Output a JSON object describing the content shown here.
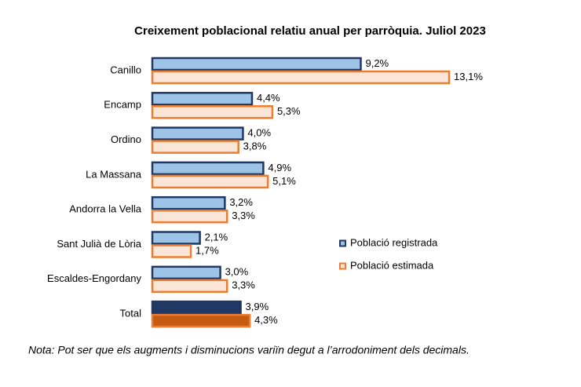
{
  "chart_data": {
    "type": "bar",
    "orientation": "horizontal",
    "title": "Creixement poblacional relatiu anual per parròquia. Juliol 2023",
    "note": "Nota: Pot ser que els augments i disminucions variïn degut a l’arrodoniment dels decimals.",
    "categories": [
      "Canillo",
      "Encamp",
      "Ordino",
      "La Massana",
      "Andorra la Vella",
      "Sant Julià de Lòria",
      "Escaldes-Engordany",
      "Total"
    ],
    "xlim": [
      0,
      14
    ],
    "legend": "right",
    "series": [
      {
        "name": "Població registrada",
        "color": "#9dc3e6",
        "border": "#1f3864",
        "colors": [
          "#9dc3e6",
          "#9dc3e6",
          "#9dc3e6",
          "#9dc3e6",
          "#9dc3e6",
          "#9dc3e6",
          "#9dc3e6",
          "#1f3864"
        ],
        "values": [
          9.2,
          4.4,
          4.0,
          4.9,
          3.2,
          2.1,
          3.0,
          3.9
        ],
        "value_labels": [
          "9,2%",
          "4,4%",
          "4,0%",
          "4,9%",
          "3,2%",
          "2,1%",
          "3,0%",
          "3,9%"
        ]
      },
      {
        "name": "Població estimada",
        "color": "#fbe5d6",
        "border": "#ed7d31",
        "colors": [
          "#fbe5d6",
          "#fbe5d6",
          "#fbe5d6",
          "#fbe5d6",
          "#fbe5d6",
          "#fbe5d6",
          "#fbe5d6",
          "#c55a11"
        ],
        "values": [
          13.1,
          5.3,
          3.8,
          5.1,
          3.3,
          1.7,
          3.3,
          4.3
        ],
        "value_labels": [
          "13,1%",
          "5,3%",
          "3,8%",
          "5,1%",
          "3,3%",
          "1,7%",
          "3,3%",
          "4,3%"
        ]
      }
    ]
  }
}
